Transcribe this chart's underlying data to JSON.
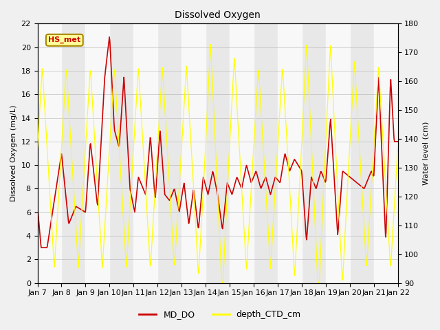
{
  "title": "Dissolved Oxygen",
  "ylabel_left": "Dissolved Oxygen (mg/L)",
  "ylabel_right": "Water level (cm)",
  "ylim_left": [
    0,
    22
  ],
  "ylim_right": [
    90,
    180
  ],
  "yticks_left": [
    0,
    2,
    4,
    6,
    8,
    10,
    12,
    14,
    16,
    18,
    20,
    22
  ],
  "yticks_right": [
    90,
    100,
    110,
    120,
    130,
    140,
    150,
    160,
    170,
    180
  ],
  "bg_color": "#f0f0f0",
  "plot_bg_color": "#e8e8e8",
  "line_color_do": "#cc0000",
  "line_color_depth": "#ffff00",
  "legend_label_do": "MD_DO",
  "legend_label_depth": "depth_CTD_cm",
  "annotation_text": "HS_met",
  "annotation_bg": "#ffff99",
  "annotation_border": "#aa8800",
  "annotation_text_color": "#cc0000",
  "xtick_labels": [
    "Jan 7",
    "Jan 8",
    "Jan 9",
    "Jan 10",
    "Jan 11",
    "Jan 12",
    "Jan 13",
    "Jan 14",
    "Jan 15",
    "Jan 16",
    "Jan 17",
    "Jan 18",
    "Jan 19",
    "Jan 20",
    "Jan 21",
    "Jan 22"
  ],
  "xtick_positions": [
    0,
    1,
    2,
    3,
    4,
    5,
    6,
    7,
    8,
    9,
    10,
    11,
    12,
    13,
    14,
    15
  ],
  "band_color_light": "#f8f8f8",
  "band_color_dark": "#e0e0e0"
}
